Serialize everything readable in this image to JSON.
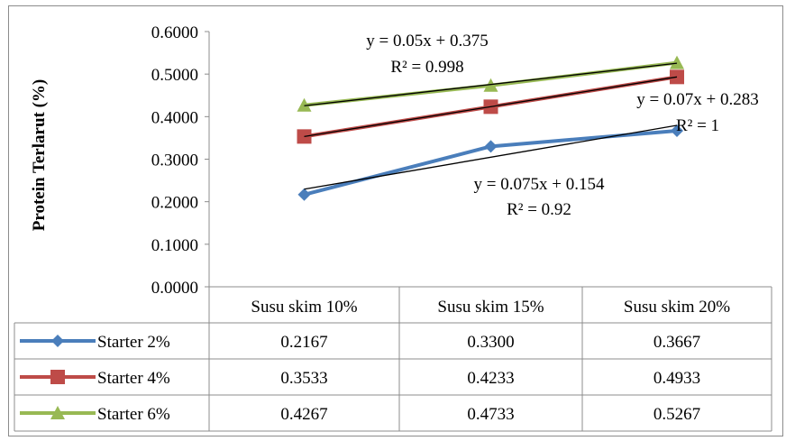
{
  "chart_data": {
    "type": "line",
    "ylabel": "Protein Terlarut (%)",
    "categories": [
      "Susu skim 10%",
      "Susu skim 15%",
      "Susu skim 20%"
    ],
    "ylim": [
      0,
      0.6
    ],
    "yticks": [
      "0.0000",
      "0.1000",
      "0.2000",
      "0.3000",
      "0.4000",
      "0.5000",
      "0.6000"
    ],
    "gridlines": false,
    "legend": "data-table-below",
    "series": [
      {
        "name": "Starter 2%",
        "color": "#4A7EBB",
        "marker": "diamond",
        "values": [
          0.2167,
          0.33,
          0.3667
        ],
        "value_labels": [
          "0.2167",
          "0.3300",
          "0.3667"
        ],
        "trendline": {
          "equation": "y = 0.075x + 0.154",
          "r2": "R² = 0.92"
        }
      },
      {
        "name": "Starter 4%",
        "color": "#BE4B48",
        "marker": "square",
        "values": [
          0.3533,
          0.4233,
          0.4933
        ],
        "value_labels": [
          "0.3533",
          "0.4233",
          "0.4933"
        ],
        "trendline": {
          "equation": "y = 0.07x + 0.283",
          "r2": "R² = 1"
        }
      },
      {
        "name": "Starter 6%",
        "color": "#98B954",
        "marker": "triangle",
        "values": [
          0.4267,
          0.4733,
          0.5267
        ],
        "value_labels": [
          "0.4267",
          "0.4733",
          "0.5267"
        ],
        "trendline": {
          "equation": "y = 0.05x + 0.375",
          "r2": "R² = 0.998"
        }
      }
    ]
  }
}
